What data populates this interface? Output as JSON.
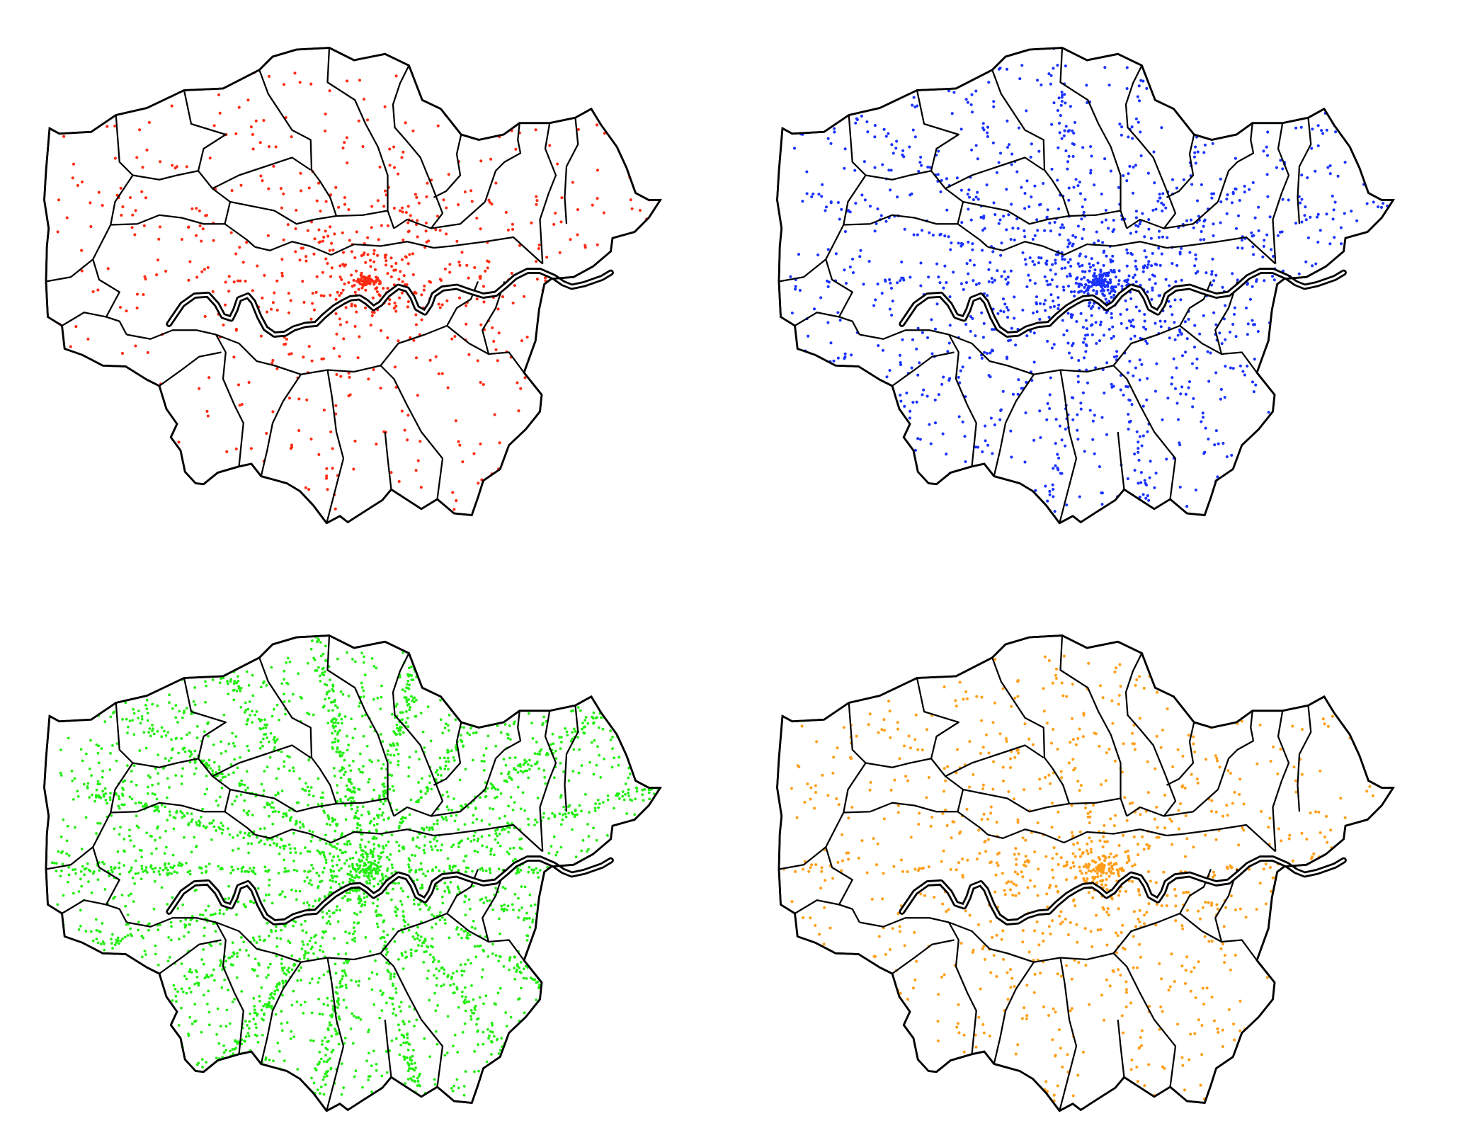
{
  "maps": [
    {
      "panel": "top-left",
      "point_color": "#ff2a12",
      "density": "low"
    },
    {
      "panel": "top-right",
      "point_color": "#1a33ff",
      "density": "medium"
    },
    {
      "panel": "bottom-left",
      "point_color": "#22ee11",
      "density": "high"
    },
    {
      "panel": "bottom-right",
      "point_color": "#ff9f1a",
      "density": "medium-low"
    }
  ],
  "styles": {
    "boundary_color": "#000000",
    "background": "#ffffff"
  }
}
